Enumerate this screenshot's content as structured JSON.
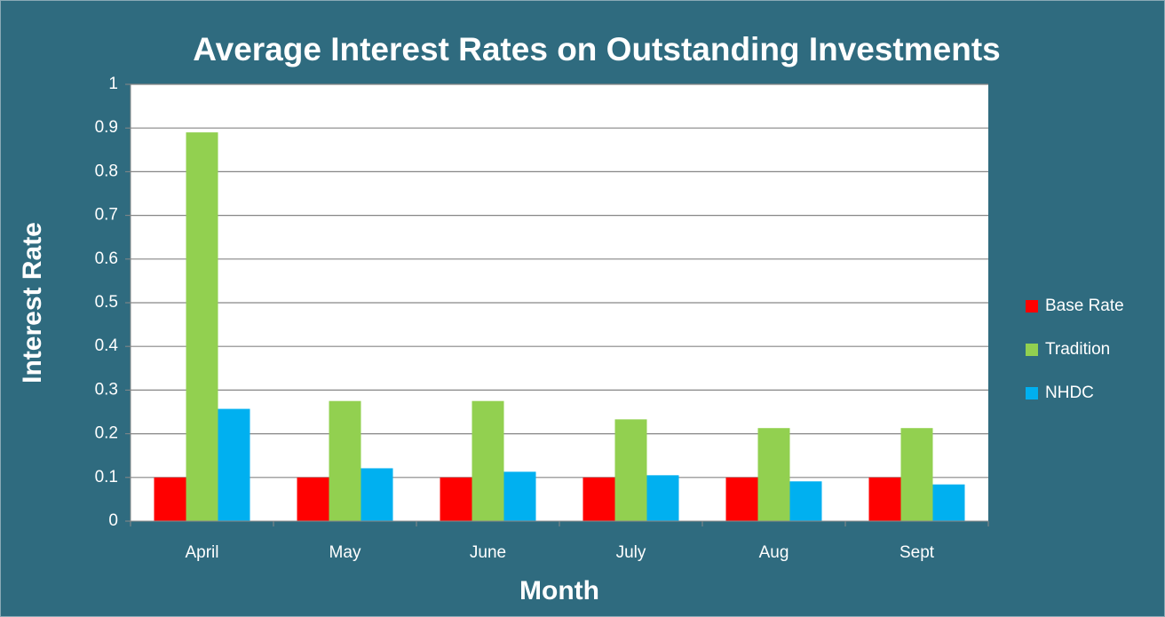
{
  "chart_data": {
    "type": "bar",
    "title": "Average Interest Rates on Outstanding Investments",
    "x_label": "Month",
    "y_label": "Interest Rate",
    "categories": [
      "April",
      "May",
      "June",
      "July",
      "Aug",
      "Sept"
    ],
    "series": [
      {
        "name": "Base Rate",
        "color": "#ff0000",
        "values": [
          0.1,
          0.1,
          0.1,
          0.1,
          0.1,
          0.1
        ]
      },
      {
        "name": "Tradition",
        "color": "#92d050",
        "values": [
          0.89,
          0.275,
          0.275,
          0.233,
          0.213,
          0.213
        ]
      },
      {
        "name": "NHDC",
        "color": "#00b0f0",
        "values": [
          0.257,
          0.121,
          0.113,
          0.105,
          0.091,
          0.084
        ]
      }
    ],
    "ylim": [
      0,
      1
    ],
    "yticks": [
      0,
      0.1,
      0.2,
      0.3,
      0.4,
      0.5,
      0.6,
      0.7,
      0.8,
      0.9,
      1
    ],
    "grid": true,
    "legend": "right"
  }
}
